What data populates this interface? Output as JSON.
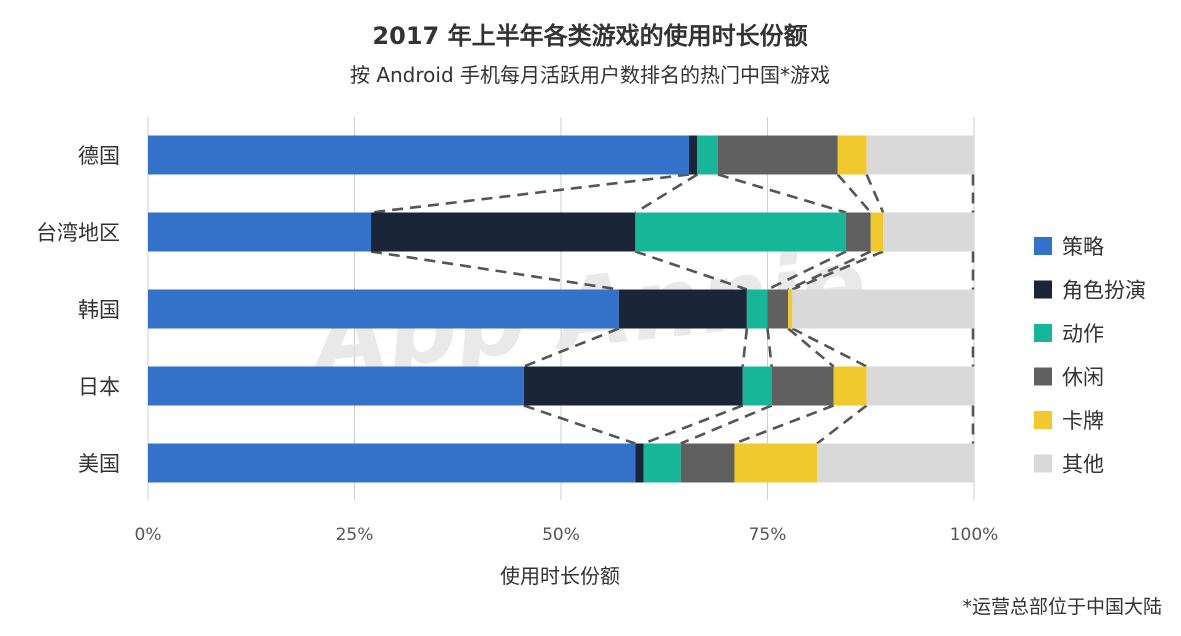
{
  "chart_data": {
    "type": "bar",
    "orientation": "horizontal",
    "stacked": true,
    "title": "2017 年上半年各类游戏的使用时长份额",
    "subtitle": "按 Android 手机每月活跃用户数排名的热门中国*游戏",
    "xlabel": "使用时长份额",
    "ylabel": "",
    "xlim": [
      0,
      100
    ],
    "x_ticks": [
      "0%",
      "25%",
      "50%",
      "75%",
      "100%"
    ],
    "x_tick_values": [
      0,
      25,
      50,
      75,
      100
    ],
    "grid": true,
    "legend_position": "right",
    "categories": [
      "德国",
      "台湾地区",
      "韩国",
      "日本",
      "美国"
    ],
    "series": [
      {
        "name": "策略",
        "color": "#3471c9",
        "values": [
          65.5,
          27.0,
          57.0,
          45.5,
          59.0
        ]
      },
      {
        "name": "角色扮演",
        "color": "#1a2638",
        "values": [
          1.0,
          32.0,
          15.5,
          26.5,
          1.0
        ]
      },
      {
        "name": "动作",
        "color": "#17b699",
        "values": [
          2.5,
          25.5,
          2.5,
          3.5,
          4.5
        ]
      },
      {
        "name": "休闲",
        "color": "#606060",
        "values": [
          14.5,
          3.0,
          2.5,
          7.5,
          6.5
        ]
      },
      {
        "name": "卡牌",
        "color": "#f0c92e",
        "values": [
          3.5,
          1.5,
          0.5,
          4.0,
          10.0
        ]
      },
      {
        "name": "其他",
        "color": "#d9d9d9",
        "values": [
          13.0,
          11.0,
          22.0,
          13.0,
          19.0
        ]
      }
    ],
    "connector_lines": "dashed"
  },
  "watermark": "App Annie",
  "footnote": "*运营总部位于中国大陆"
}
